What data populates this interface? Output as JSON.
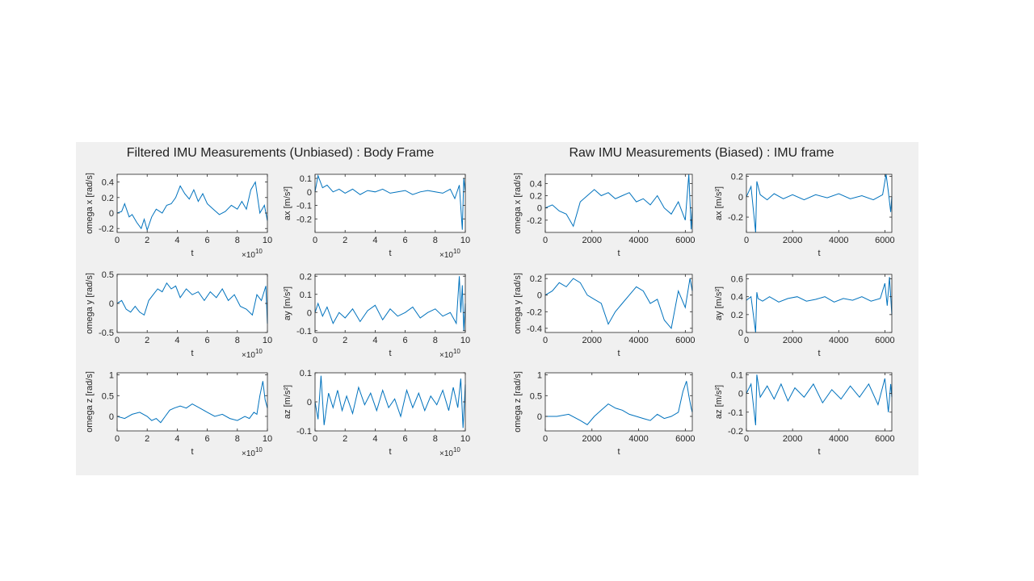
{
  "chart_data": [
    {
      "type": "line",
      "title": "Filtered IMU Measurements (Unbiased) : Body Frame",
      "xlabel": "t",
      "x_exponent_label": "×10",
      "x_exponent_power": "10",
      "line_color": "#0072BD",
      "subplots": [
        {
          "ylabel": "omega x [rad/s]",
          "xlim": [
            0,
            10
          ],
          "ylim": [
            -0.25,
            0.5
          ],
          "xticks": [
            0,
            2,
            4,
            6,
            8,
            10
          ],
          "yticks": [
            -0.2,
            0,
            0.2,
            0.4
          ],
          "ytick_labels": [
            "-0.2",
            "0",
            "0.2",
            "0.4"
          ],
          "x": [
            0,
            0.3,
            0.5,
            0.8,
            1,
            1.3,
            1.6,
            1.8,
            2,
            2.3,
            2.6,
            3,
            3.3,
            3.6,
            3.9,
            4.2,
            4.5,
            4.8,
            5.1,
            5.4,
            5.7,
            6,
            6.4,
            6.8,
            7.2,
            7.6,
            8,
            8.3,
            8.6,
            8.9,
            9.2,
            9.5,
            9.8,
            10
          ],
          "y": [
            0.0,
            0.02,
            0.12,
            -0.05,
            -0.02,
            -0.12,
            -0.2,
            -0.08,
            -0.22,
            -0.05,
            0.05,
            0.0,
            0.1,
            0.12,
            0.2,
            0.35,
            0.25,
            0.18,
            0.3,
            0.15,
            0.25,
            0.12,
            0.05,
            -0.02,
            0.02,
            0.1,
            0.05,
            0.15,
            0.05,
            0.3,
            0.4,
            0.0,
            0.1,
            -0.1
          ]
        },
        {
          "ylabel": "ax [m/s²]",
          "xlim": [
            0,
            10
          ],
          "ylim": [
            -0.3,
            0.13
          ],
          "xticks": [
            0,
            2,
            4,
            6,
            8,
            10
          ],
          "yticks": [
            -0.2,
            -0.1,
            0,
            0.1
          ],
          "ytick_labels": [
            "-0.2",
            "-0.1",
            "0",
            "0.1"
          ],
          "x": [
            0,
            0.2,
            0.5,
            0.8,
            1.2,
            1.6,
            2,
            2.5,
            3,
            3.5,
            4,
            4.5,
            5,
            5.5,
            6,
            6.5,
            7,
            7.5,
            8,
            8.5,
            9,
            9.3,
            9.6,
            9.8,
            9.9,
            10
          ],
          "y": [
            0.0,
            0.12,
            0.03,
            0.05,
            0.0,
            0.02,
            -0.01,
            0.02,
            -0.02,
            0.01,
            0.0,
            0.02,
            -0.01,
            0.0,
            0.01,
            -0.02,
            0.0,
            0.01,
            0.0,
            -0.01,
            0.02,
            -0.05,
            0.05,
            -0.28,
            0.1,
            0.0
          ]
        },
        {
          "ylabel": "omega y [rad/s]",
          "xlim": [
            0,
            10
          ],
          "ylim": [
            -0.5,
            0.5
          ],
          "xticks": [
            0,
            2,
            4,
            6,
            8,
            10
          ],
          "yticks": [
            -0.5,
            0,
            0.5
          ],
          "ytick_labels": [
            "-0.5",
            "0",
            "0.5"
          ],
          "x": [
            0,
            0.3,
            0.6,
            0.9,
            1.2,
            1.5,
            1.8,
            2.1,
            2.4,
            2.7,
            3,
            3.3,
            3.6,
            3.9,
            4.2,
            4.6,
            5,
            5.4,
            5.8,
            6.2,
            6.6,
            7,
            7.4,
            7.8,
            8.2,
            8.6,
            9,
            9.3,
            9.6,
            9.9,
            10
          ],
          "y": [
            0.0,
            0.05,
            -0.1,
            -0.15,
            -0.05,
            -0.15,
            -0.2,
            0.05,
            0.15,
            0.25,
            0.2,
            0.35,
            0.25,
            0.3,
            0.1,
            0.25,
            0.15,
            0.2,
            0.05,
            0.2,
            0.1,
            0.25,
            0.05,
            0.15,
            -0.05,
            -0.1,
            -0.2,
            0.15,
            0.05,
            0.3,
            -0.35
          ]
        },
        {
          "ylabel": "ay [m/s²]",
          "xlim": [
            0,
            10
          ],
          "ylim": [
            -0.11,
            0.21
          ],
          "xticks": [
            0,
            2,
            4,
            6,
            8,
            10
          ],
          "yticks": [
            -0.1,
            0,
            0.1,
            0.2
          ],
          "ytick_labels": [
            "-0.1",
            "0",
            "0.1",
            "0.2"
          ],
          "x": [
            0,
            0.2,
            0.5,
            0.8,
            1.2,
            1.6,
            2,
            2.5,
            3,
            3.5,
            4,
            4.5,
            5,
            5.5,
            6,
            6.5,
            7,
            7.5,
            8,
            8.5,
            9,
            9.4,
            9.6,
            9.7,
            9.8,
            9.9,
            10
          ],
          "y": [
            0.0,
            0.05,
            -0.02,
            0.03,
            -0.06,
            0.0,
            -0.03,
            0.02,
            -0.05,
            0.01,
            0.04,
            -0.04,
            0.02,
            -0.02,
            0.0,
            0.03,
            -0.03,
            0.0,
            0.02,
            -0.02,
            0.0,
            -0.06,
            0.2,
            0.0,
            0.15,
            -0.1,
            0.05
          ]
        },
        {
          "ylabel": "omega z [rad/s]",
          "xlim": [
            0,
            10
          ],
          "ylim": [
            -0.35,
            1.05
          ],
          "xticks": [
            0,
            2,
            4,
            6,
            8,
            10
          ],
          "yticks": [
            0,
            0.5,
            1
          ],
          "ytick_labels": [
            "0",
            "0.5",
            "1"
          ],
          "x": [
            0,
            0.5,
            1,
            1.5,
            2,
            2.3,
            2.6,
            2.9,
            3.2,
            3.5,
            3.8,
            4.2,
            4.6,
            5,
            5.5,
            6,
            6.5,
            7,
            7.5,
            8,
            8.5,
            8.8,
            9.1,
            9.3,
            9.5,
            9.7,
            9.85,
            10
          ],
          "y": [
            0.0,
            -0.05,
            0.05,
            0.1,
            0.0,
            -0.1,
            -0.05,
            -0.15,
            0.0,
            0.15,
            0.2,
            0.25,
            0.2,
            0.3,
            0.2,
            0.1,
            0.0,
            0.05,
            -0.05,
            -0.1,
            0.0,
            -0.05,
            0.1,
            0.05,
            0.5,
            0.85,
            0.4,
            0.2
          ]
        },
        {
          "ylabel": "az [m/s²]",
          "xlim": [
            0,
            10
          ],
          "ylim": [
            -0.1,
            0.1
          ],
          "xticks": [
            0,
            2,
            4,
            6,
            8,
            10
          ],
          "yticks": [
            -0.1,
            0,
            0.1
          ],
          "ytick_labels": [
            "-0.1",
            "0",
            "0.1"
          ],
          "x": [
            0,
            0.2,
            0.4,
            0.6,
            0.9,
            1.2,
            1.5,
            1.8,
            2.1,
            2.5,
            2.9,
            3.3,
            3.7,
            4.1,
            4.5,
            4.9,
            5.3,
            5.7,
            6.1,
            6.5,
            6.9,
            7.3,
            7.7,
            8.1,
            8.5,
            8.9,
            9.2,
            9.5,
            9.7,
            9.85,
            10
          ],
          "y": [
            0.0,
            -0.06,
            0.09,
            -0.08,
            0.03,
            -0.02,
            0.04,
            -0.03,
            0.02,
            -0.04,
            0.05,
            -0.01,
            0.03,
            -0.03,
            0.04,
            -0.02,
            0.01,
            -0.05,
            0.04,
            -0.02,
            0.03,
            -0.03,
            0.02,
            -0.01,
            0.04,
            -0.03,
            0.05,
            -0.02,
            0.08,
            -0.09,
            0.06
          ]
        }
      ]
    },
    {
      "type": "line",
      "title": "Raw IMU Measurements (Biased) : IMU frame",
      "xlabel": "t",
      "line_color": "#0072BD",
      "subplots": [
        {
          "ylabel": "omega x [rad/s]",
          "xlim": [
            0,
            6300
          ],
          "ylim": [
            -0.4,
            0.55
          ],
          "xticks": [
            0,
            2000,
            4000,
            6000
          ],
          "yticks": [
            -0.2,
            0,
            0.2,
            0.4
          ],
          "ytick_labels": [
            "-0.2",
            "0",
            "0.2",
            "0.4"
          ],
          "x": [
            0,
            300,
            600,
            900,
            1200,
            1500,
            1800,
            2100,
            2400,
            2700,
            3000,
            3300,
            3600,
            3900,
            4200,
            4500,
            4800,
            5100,
            5400,
            5700,
            6000,
            6150,
            6250,
            6300
          ],
          "y": [
            0.0,
            0.05,
            -0.05,
            -0.1,
            -0.3,
            0.1,
            0.2,
            0.3,
            0.2,
            0.25,
            0.15,
            0.2,
            0.25,
            0.1,
            0.15,
            0.05,
            0.2,
            0.0,
            -0.1,
            0.1,
            -0.2,
            0.55,
            -0.35,
            0.0
          ]
        },
        {
          "ylabel": "ax [m/s²]",
          "xlim": [
            0,
            6300
          ],
          "ylim": [
            -0.35,
            0.22
          ],
          "xticks": [
            0,
            2000,
            4000,
            6000
          ],
          "yticks": [
            -0.2,
            0,
            0.2
          ],
          "ytick_labels": [
            "-0.2",
            "0",
            "0.2"
          ],
          "x": [
            0,
            200,
            400,
            450,
            600,
            900,
            1200,
            1600,
            2000,
            2500,
            3000,
            3500,
            4000,
            4500,
            5000,
            5500,
            5900,
            6050,
            6150,
            6250,
            6300
          ],
          "y": [
            0.0,
            0.1,
            -0.35,
            0.15,
            0.02,
            -0.03,
            0.03,
            -0.02,
            0.02,
            -0.03,
            0.02,
            -0.01,
            0.03,
            -0.02,
            0.01,
            -0.03,
            0.02,
            0.22,
            0.05,
            -0.15,
            0.0
          ]
        },
        {
          "ylabel": "omega y [rad/s]",
          "xlim": [
            0,
            6300
          ],
          "ylim": [
            -0.45,
            0.25
          ],
          "xticks": [
            0,
            2000,
            4000,
            6000
          ],
          "yticks": [
            -0.4,
            -0.2,
            0,
            0.2
          ],
          "ytick_labels": [
            "-0.4",
            "-0.2",
            "0",
            "0.2"
          ],
          "x": [
            0,
            300,
            600,
            900,
            1200,
            1500,
            1800,
            2100,
            2400,
            2700,
            3000,
            3300,
            3600,
            3900,
            4200,
            4500,
            4800,
            5100,
            5400,
            5700,
            6000,
            6200,
            6300
          ],
          "y": [
            0.0,
            0.05,
            0.15,
            0.1,
            0.2,
            0.15,
            0.0,
            -0.05,
            -0.1,
            -0.35,
            -0.2,
            -0.1,
            0.0,
            0.1,
            0.05,
            -0.1,
            -0.05,
            -0.3,
            -0.4,
            0.05,
            -0.15,
            0.2,
            0.05
          ]
        },
        {
          "ylabel": "ay [m/s²]",
          "xlim": [
            0,
            6300
          ],
          "ylim": [
            0,
            0.65
          ],
          "xticks": [
            0,
            2000,
            4000,
            6000
          ],
          "yticks": [
            0,
            0.2,
            0.4,
            0.6
          ],
          "ytick_labels": [
            "0",
            "0.2",
            "0.4",
            "0.6"
          ],
          "x": [
            0,
            200,
            400,
            450,
            500,
            700,
            1000,
            1400,
            1800,
            2200,
            2600,
            3000,
            3400,
            3800,
            4200,
            4600,
            5000,
            5400,
            5800,
            6000,
            6100,
            6200,
            6300
          ],
          "y": [
            0.36,
            0.4,
            0.0,
            0.45,
            0.38,
            0.35,
            0.4,
            0.34,
            0.38,
            0.4,
            0.35,
            0.37,
            0.4,
            0.34,
            0.38,
            0.36,
            0.4,
            0.35,
            0.38,
            0.55,
            0.3,
            0.62,
            0.2
          ]
        },
        {
          "ylabel": "omega z [rad/s]",
          "xlim": [
            0,
            6300
          ],
          "ylim": [
            -0.35,
            1.05
          ],
          "xticks": [
            0,
            2000,
            4000,
            6000
          ],
          "yticks": [
            0,
            0.5,
            1
          ],
          "ytick_labels": [
            "0",
            "0.5",
            "1"
          ],
          "x": [
            0,
            500,
            1000,
            1500,
            1800,
            2100,
            2400,
            2700,
            3000,
            3300,
            3600,
            3900,
            4200,
            4500,
            4800,
            5100,
            5400,
            5700,
            5900,
            6050,
            6150,
            6250,
            6300
          ],
          "y": [
            0.0,
            0.0,
            0.05,
            -0.1,
            -0.2,
            0.0,
            0.15,
            0.3,
            0.2,
            0.15,
            0.05,
            0.0,
            -0.05,
            -0.1,
            0.05,
            -0.05,
            0.0,
            0.1,
            0.6,
            0.85,
            0.5,
            0.2,
            0.1
          ]
        },
        {
          "ylabel": "az [m/s²]",
          "xlim": [
            0,
            6300
          ],
          "ylim": [
            -0.2,
            0.11
          ],
          "xticks": [
            0,
            2000,
            4000,
            6000
          ],
          "yticks": [
            -0.2,
            -0.1,
            0,
            0.1
          ],
          "ytick_labels": [
            "-0.2",
            "-0.1",
            "0",
            "0.1"
          ],
          "x": [
            0,
            200,
            400,
            450,
            600,
            900,
            1200,
            1500,
            1800,
            2100,
            2500,
            2900,
            3300,
            3700,
            4100,
            4500,
            4900,
            5300,
            5700,
            6000,
            6150,
            6250,
            6300
          ],
          "y": [
            0.0,
            0.05,
            -0.17,
            0.1,
            -0.02,
            0.04,
            -0.03,
            0.05,
            -0.04,
            0.03,
            -0.02,
            0.05,
            -0.05,
            0.02,
            -0.03,
            0.04,
            -0.02,
            0.05,
            -0.06,
            0.08,
            -0.1,
            0.05,
            -0.02
          ]
        }
      ]
    }
  ]
}
